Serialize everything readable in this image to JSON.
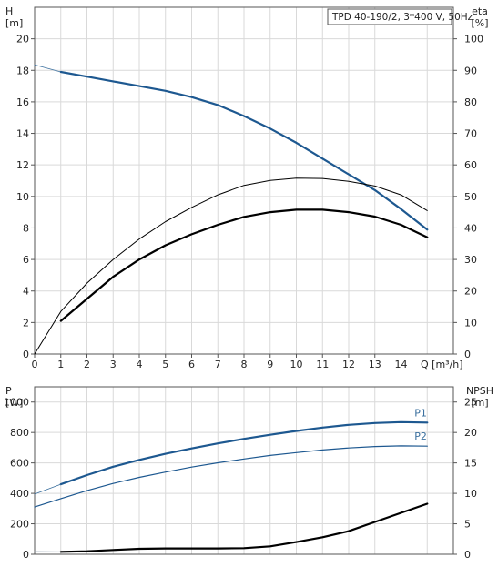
{
  "chart_data": [
    {
      "type": "line",
      "title": "TPD 40-190/2, 3*400 V, 50Hz",
      "xlabel": "Q [m³/h]",
      "x_ticks": [
        "0",
        "1",
        "2",
        "3",
        "4",
        "5",
        "6",
        "7",
        "8",
        "9",
        "10",
        "11",
        "12",
        "13",
        "14"
      ],
      "xlim": [
        0,
        16
      ],
      "left_axis": {
        "label": "H",
        "unit": "[m]",
        "ticks": [
          "0",
          "2",
          "4",
          "6",
          "8",
          "10",
          "12",
          "14",
          "16",
          "18",
          "20"
        ],
        "range": [
          0,
          22
        ]
      },
      "right_axis": {
        "label": "eta",
        "unit": "[%]",
        "ticks": [
          "0",
          "10",
          "20",
          "30",
          "40",
          "50",
          "60",
          "70",
          "80",
          "90",
          "100"
        ],
        "range": [
          0,
          110
        ]
      },
      "grid": true,
      "series": [
        {
          "axis": "left",
          "color": "#3a6f9e",
          "width": 0.8,
          "x": [
            0,
            1
          ],
          "y": [
            18.35,
            17.9
          ]
        },
        {
          "axis": "left",
          "color": "#1d5890",
          "width": 2.2,
          "x": [
            1,
            2,
            3,
            4,
            5,
            6,
            7,
            8,
            9,
            10,
            11,
            12,
            13,
            14,
            15
          ],
          "y": [
            17.9,
            17.6,
            17.3,
            17.0,
            16.7,
            16.3,
            15.8,
            15.1,
            14.3,
            13.4,
            12.4,
            11.4,
            10.4,
            9.2,
            7.9
          ]
        },
        {
          "axis": "right",
          "color": "#000000",
          "width": 1.0,
          "x": [
            0,
            1,
            2,
            3,
            4,
            5,
            6,
            7,
            8,
            9,
            10,
            11,
            12,
            13,
            14,
            15
          ],
          "y": [
            0,
            13.5,
            22.5,
            30.0,
            36.5,
            42.0,
            46.5,
            50.5,
            53.5,
            55.1,
            55.8,
            55.7,
            54.8,
            53.3,
            50.5,
            45.5
          ]
        },
        {
          "axis": "right",
          "color": "#000000",
          "width": 2.2,
          "x": [
            1,
            2,
            3,
            4,
            5,
            6,
            7,
            8,
            9,
            10,
            11,
            12,
            13,
            14,
            15
          ],
          "y": [
            10.5,
            17.5,
            24.5,
            30.0,
            34.5,
            38.0,
            41.0,
            43.5,
            45.0,
            45.8,
            45.8,
            45.0,
            43.6,
            41.0,
            37.0
          ]
        }
      ]
    },
    {
      "type": "line",
      "left_axis": {
        "label": "P",
        "unit": "[W]",
        "ticks": [
          "0",
          "200",
          "400",
          "600",
          "800",
          "1000"
        ],
        "range": [
          0,
          1100
        ]
      },
      "right_axis": {
        "label": "NPSH",
        "unit": "[m]",
        "ticks": [
          "0",
          "5",
          "10",
          "15",
          "20",
          "25"
        ],
        "range": [
          0,
          27.5
        ]
      },
      "xlim": [
        0,
        16
      ],
      "grid": true,
      "series": [
        {
          "name": "P1",
          "axis": "left",
          "color": "#1d5890",
          "width": 2.2,
          "x": [
            1,
            2,
            3,
            4,
            5,
            6,
            7,
            8,
            9,
            10,
            11,
            12,
            13,
            14,
            15
          ],
          "y": [
            460,
            520,
            575,
            620,
            660,
            695,
            728,
            758,
            785,
            810,
            832,
            850,
            862,
            868,
            865
          ]
        },
        {
          "axis": "left",
          "color": "#3a6f9e",
          "width": 0.8,
          "x": [
            0,
            1
          ],
          "y": [
            395,
            460
          ]
        },
        {
          "name": "P2",
          "axis": "left",
          "color": "#1d5890",
          "width": 1.2,
          "x": [
            0,
            1,
            2,
            3,
            4,
            5,
            6,
            7,
            8,
            9,
            10,
            11,
            12,
            13,
            14,
            15
          ],
          "y": [
            310,
            365,
            418,
            465,
            505,
            540,
            573,
            601,
            626,
            649,
            668,
            685,
            698,
            708,
            712,
            710
          ]
        },
        {
          "axis": "right",
          "color": "#000000",
          "width": 2.2,
          "x": [
            1,
            2,
            3,
            4,
            5,
            6,
            7,
            8,
            9,
            10,
            11,
            12,
            13,
            14,
            15
          ],
          "y": [
            0.4,
            0.5,
            0.7,
            0.9,
            0.95,
            0.95,
            0.95,
            1.0,
            1.3,
            2.0,
            2.8,
            3.8,
            5.3,
            6.8,
            8.3
          ]
        },
        {
          "axis": "right",
          "color": "#9aa7b4",
          "width": 0.8,
          "x": [
            0,
            1
          ],
          "y": [
            0.45,
            0.4
          ]
        }
      ]
    }
  ]
}
